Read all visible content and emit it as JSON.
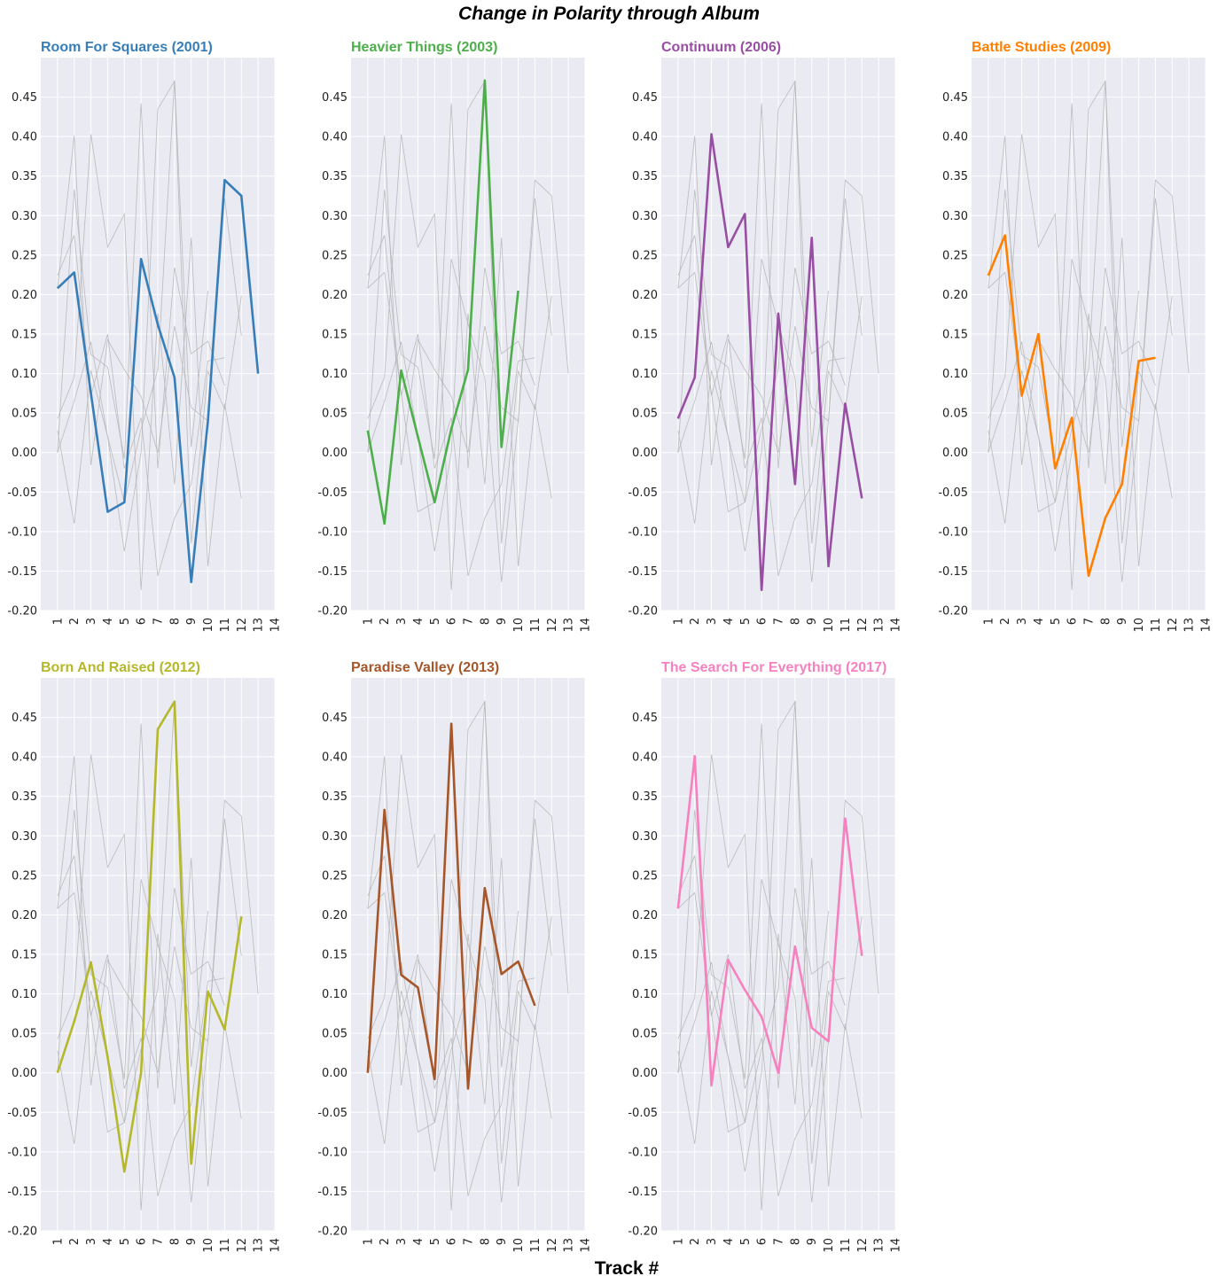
{
  "figure": {
    "title": "Change in Polarity through Album",
    "xlabel": "Track #"
  },
  "chart_data": {
    "type": "line",
    "layout": "small-multiples",
    "background_series_color": "#b3b3b3",
    "panel_background": "#e9eaf2",
    "grid": true,
    "xticks": [
      1,
      2,
      3,
      4,
      5,
      6,
      7,
      8,
      9,
      10,
      11,
      12,
      13,
      14
    ],
    "xlim": [
      0,
      14
    ],
    "yticks": [
      -0.2,
      -0.15,
      -0.1,
      -0.05,
      0.0,
      0.05,
      0.1,
      0.15,
      0.2,
      0.25,
      0.3,
      0.35,
      0.4,
      0.45
    ],
    "ylim": [
      -0.2,
      0.5
    ],
    "series": [
      {
        "name": "Room For Squares (2001)",
        "color": "#377eb8",
        "x": [
          1,
          2,
          3,
          4,
          5,
          6,
          7,
          8,
          9,
          10,
          11,
          12,
          13
        ],
        "y": [
          0.208,
          0.228,
          0.075,
          -0.075,
          -0.063,
          0.245,
          0.162,
          0.095,
          -0.164,
          0.04,
          0.345,
          0.325,
          0.1
        ]
      },
      {
        "name": "Heavier Things (2003)",
        "color": "#4daf4a",
        "x": [
          1,
          2,
          3,
          4,
          5,
          6,
          7,
          8,
          9,
          10
        ],
        "y": [
          0.028,
          -0.09,
          0.104,
          0.02,
          -0.063,
          0.03,
          0.105,
          0.471,
          0.007,
          0.205
        ]
      },
      {
        "name": "Continuum (2006)",
        "color": "#984ea3",
        "x": [
          1,
          2,
          3,
          4,
          5,
          6,
          7,
          8,
          9,
          10,
          11,
          12
        ],
        "y": [
          0.043,
          0.095,
          0.403,
          0.26,
          0.302,
          -0.174,
          0.176,
          -0.04,
          0.272,
          -0.144,
          0.062,
          -0.058
        ]
      },
      {
        "name": "Battle Studies (2009)",
        "color": "#ff7f00",
        "x": [
          1,
          2,
          3,
          4,
          5,
          6,
          7,
          8,
          9,
          10,
          11
        ],
        "y": [
          0.224,
          0.275,
          0.072,
          0.15,
          -0.02,
          0.044,
          -0.156,
          -0.083,
          -0.04,
          0.116,
          0.12
        ]
      },
      {
        "name": "Born And Raised (2012)",
        "color": "#b5b82a",
        "x": [
          1,
          2,
          3,
          4,
          5,
          6,
          7,
          8,
          9,
          10,
          11,
          12
        ],
        "y": [
          0.0,
          0.065,
          0.14,
          0.02,
          -0.125,
          0.0,
          0.435,
          0.47,
          -0.115,
          0.103,
          0.055,
          0.198
        ]
      },
      {
        "name": "Paradise Valley (2013)",
        "color": "#a65628",
        "x": [
          1,
          2,
          3,
          4,
          5,
          6,
          7,
          8,
          9,
          10,
          11
        ],
        "y": [
          0.0,
          0.333,
          0.124,
          0.108,
          -0.008,
          0.442,
          -0.02,
          0.234,
          0.125,
          0.141,
          0.085
        ]
      },
      {
        "name": "The Search For Everything (2017)",
        "color": "#f781bf",
        "x": [
          1,
          2,
          3,
          4,
          5,
          6,
          7,
          8,
          9,
          10,
          11,
          12
        ],
        "y": [
          0.208,
          0.401,
          -0.016,
          0.143,
          0.105,
          0.071,
          0.0,
          0.16,
          0.057,
          0.04,
          0.322,
          0.148
        ]
      }
    ]
  }
}
